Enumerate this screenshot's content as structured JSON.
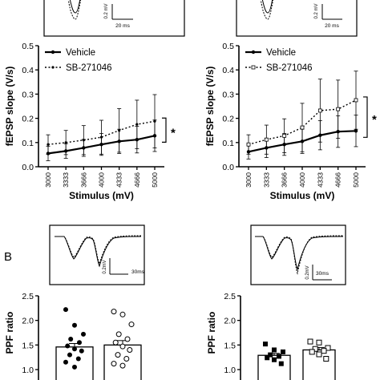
{
  "panels_top": {
    "inset_scale_left": {
      "v": "0.2 mV",
      "t": "20 ms"
    },
    "inset_scale_right": {
      "v": "0.2 mV",
      "t": "20 ms"
    }
  },
  "panel_b_label": "B",
  "inset_b_left": {
    "v": "0.2mV",
    "t": "30ms"
  },
  "inset_b_right": {
    "v": "0.2mV",
    "t": "30ms"
  },
  "chart_data": [
    {
      "type": "line",
      "xlabel": "Stimulus (mV)",
      "ylabel": "fEPSP slope (V/s)",
      "categories": [
        "3000",
        "3333",
        "3666",
        "4000",
        "4333",
        "4666",
        "5000"
      ],
      "ylim": [
        0,
        0.5
      ],
      "yticks": [
        "0.0",
        "0.1",
        "0.2",
        "0.3",
        "0.4",
        "0.5"
      ],
      "series": [
        {
          "name": "Vehicle",
          "values": [
            0.055,
            0.065,
            0.078,
            0.092,
            0.105,
            0.112,
            0.128
          ],
          "err": [
            0.03,
            0.03,
            0.035,
            0.045,
            0.05,
            0.055,
            0.065
          ]
        },
        {
          "name": "SB-271046",
          "values": [
            0.092,
            0.1,
            0.11,
            0.122,
            0.15,
            0.175,
            0.188
          ],
          "err": [
            0.04,
            0.05,
            0.06,
            0.07,
            0.09,
            0.1,
            0.11
          ]
        }
      ],
      "annotation": "*"
    },
    {
      "type": "line",
      "xlabel": "Stimulus (mV)",
      "ylabel": "fEPSP slope (V/s)",
      "categories": [
        "3000",
        "3333",
        "3666",
        "4000",
        "4333",
        "4666",
        "5000"
      ],
      "ylim": [
        0,
        0.5
      ],
      "yticks": [
        "0.0",
        "0.1",
        "0.2",
        "0.3",
        "0.4",
        "0.5"
      ],
      "series": [
        {
          "name": "Vehicle",
          "values": [
            0.062,
            0.078,
            0.092,
            0.105,
            0.13,
            0.145,
            0.148
          ],
          "err": [
            0.03,
            0.04,
            0.045,
            0.05,
            0.06,
            0.065,
            0.065
          ]
        },
        {
          "name": "SB-271046",
          "values": [
            0.092,
            0.112,
            0.128,
            0.162,
            0.232,
            0.238,
            0.275
          ],
          "err": [
            0.04,
            0.06,
            0.07,
            0.1,
            0.13,
            0.12,
            0.12
          ]
        }
      ],
      "annotation": "*"
    },
    {
      "type": "bar",
      "ylabel": "PPF ratio",
      "ylim": [
        1.0,
        2.5
      ],
      "yticks": [
        "1.0",
        "1.5",
        "2.0",
        "2.5"
      ],
      "bars": [
        {
          "mean": 1.46,
          "sem": 0.07,
          "marker": "filled-circle",
          "points": [
            2.22,
            1.9,
            1.72,
            1.62,
            1.55,
            1.48,
            1.42,
            1.38,
            1.3,
            1.22,
            1.15,
            1.05
          ]
        },
        {
          "mean": 1.5,
          "sem": 0.09,
          "marker": "open-circle",
          "points": [
            2.18,
            2.12,
            1.92,
            1.72,
            1.62,
            1.55,
            1.47,
            1.4,
            1.3,
            1.22,
            1.12,
            1.08
          ]
        }
      ]
    },
    {
      "type": "bar",
      "ylabel": "PPF ratio",
      "ylim": [
        1.0,
        2.5
      ],
      "yticks": [
        "1.0",
        "1.5",
        "2.0",
        "2.5"
      ],
      "bars": [
        {
          "mean": 1.29,
          "sem": 0.04,
          "marker": "filled-square",
          "points": [
            1.52,
            1.4,
            1.36,
            1.3,
            1.27,
            1.24,
            1.2,
            1.12
          ]
        },
        {
          "mean": 1.4,
          "sem": 0.05,
          "marker": "open-square",
          "points": [
            1.57,
            1.55,
            1.44,
            1.42,
            1.38,
            1.36,
            1.31,
            1.22
          ]
        }
      ]
    }
  ]
}
